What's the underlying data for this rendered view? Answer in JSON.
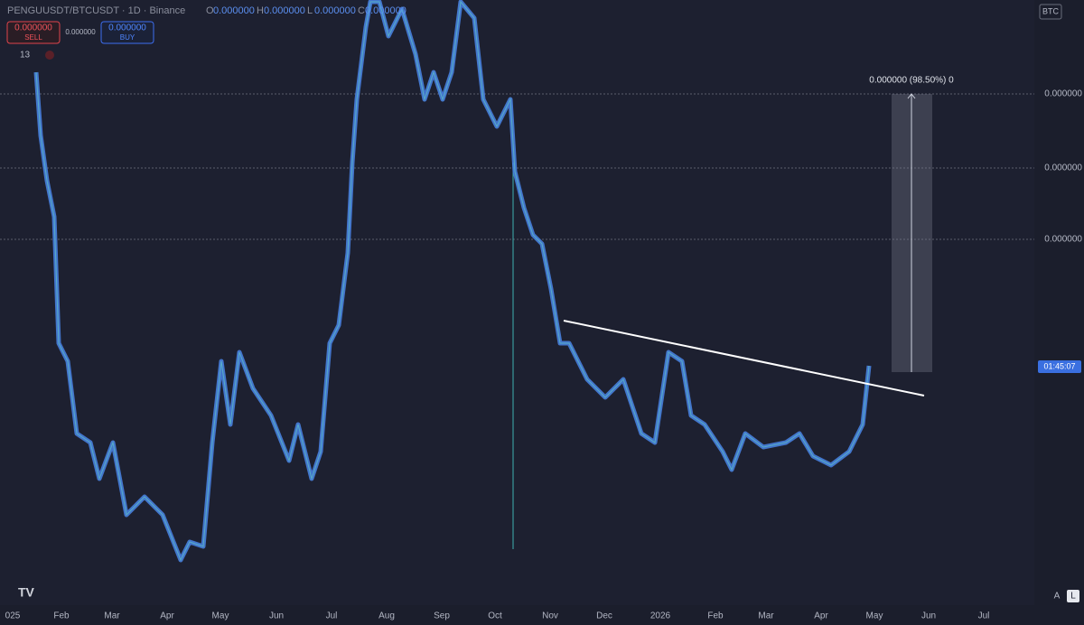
{
  "header": {
    "symbol": "PENGUUSDT/BTCUSDT · 1D · Binance",
    "open": "O",
    "open_value": "0.000000",
    "high": "H",
    "high_value": "0.000000",
    "low": "L",
    "low_value": "0.000000",
    "close": "C",
    "close_value": "0.000000"
  },
  "trade": {
    "sell_price": "0.000000",
    "sell": "SELL",
    "spread": "0.000000",
    "buy_price": "0.000000",
    "buy": "BUY"
  },
  "indicators": {
    "count": "13"
  },
  "price_axis": {
    "currency": "BTC",
    "labels": [
      "0.000000",
      "0.000000",
      "0.000000"
    ],
    "countdown": "01:45:07"
  },
  "measure": {
    "label": "0.000000 (98.50%) 0"
  },
  "time_axis": {
    "labels": [
      "025",
      "Feb",
      "Mar",
      "Apr",
      "May",
      "Jun",
      "Jul",
      "Aug",
      "Sep",
      "Oct",
      "Nov",
      "Dec",
      "2026",
      "Feb",
      "Mar",
      "Apr",
      "May",
      "Jun",
      "Jul"
    ]
  },
  "controls": {
    "auto": "A",
    "log": "L"
  }
}
